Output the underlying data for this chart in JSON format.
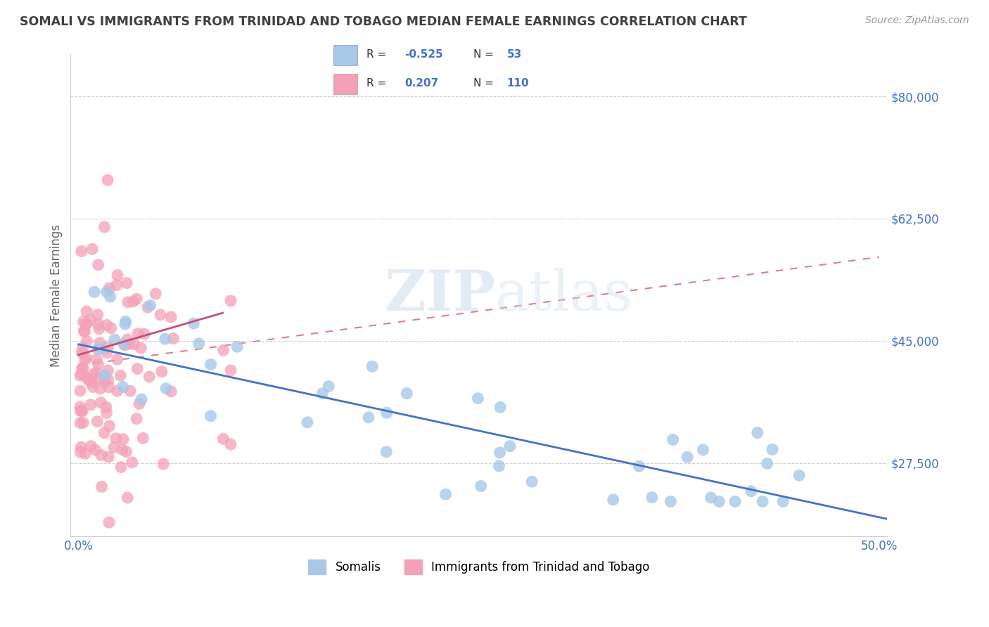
{
  "title": "SOMALI VS IMMIGRANTS FROM TRINIDAD AND TOBAGO MEDIAN FEMALE EARNINGS CORRELATION CHART",
  "source": "Source: ZipAtlas.com",
  "ylabel": "Median Female Earnings",
  "xlabel": "",
  "xlim": [
    -0.005,
    0.505
  ],
  "ylim": [
    17000,
    86000
  ],
  "yticks": [
    27500,
    45000,
    62500,
    80000
  ],
  "ytick_labels": [
    "$27,500",
    "$45,000",
    "$62,500",
    "$80,000"
  ],
  "xticks": [
    0.0,
    0.1,
    0.2,
    0.3,
    0.4,
    0.5
  ],
  "xtick_labels": [
    "0.0%",
    "",
    "",
    "",
    "",
    "50.0%"
  ],
  "somali_color": "#a8c8e8",
  "tt_color": "#f4a0b8",
  "somali_R": -0.525,
  "somali_N": 53,
  "tt_R": 0.207,
  "tt_N": 110,
  "legend_label_somali": "Somalis",
  "legend_label_tt": "Immigrants from Trinidad and Tobago",
  "background_color": "#ffffff",
  "grid_color": "#cccccc",
  "watermark_zip": "ZIP",
  "watermark_atlas": "atlas",
  "title_color": "#404040",
  "axis_label_color": "#4472c4",
  "somali_line_color": "#4472c4",
  "tt_line_color": "#c0507a",
  "tt_dash_color": "#d88090",
  "ylabel_color": "#666666"
}
